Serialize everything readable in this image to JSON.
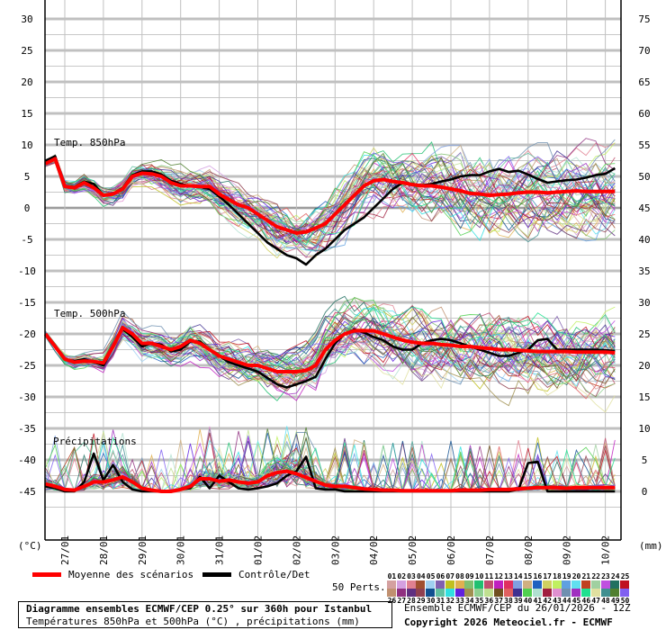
{
  "chart_data": {
    "type": "line",
    "title": "Diagramme ensembles ECMWF/CEP 0.25° sur 360h pour Istanbul",
    "subtitle": "Températures 850hPa et 500hPa (°C) , précipitations (mm)",
    "left_axis": {
      "label": "(°C)",
      "ticks": [
        30,
        25,
        20,
        15,
        10,
        5,
        0,
        -5,
        -10,
        -15,
        -20,
        -25,
        -30,
        -35,
        -40,
        -45
      ],
      "range": [
        -52,
        33
      ]
    },
    "right_axis": {
      "label": "(mm)",
      "ticks": [
        75,
        70,
        65,
        60,
        55,
        50,
        45,
        40,
        35,
        30,
        25,
        20,
        15,
        10,
        5,
        0
      ],
      "range": [
        -7,
        78
      ]
    },
    "x_categories": [
      "27/01",
      "28/01",
      "29/01",
      "30/01",
      "31/01",
      "01/02",
      "02/02",
      "03/02",
      "04/02",
      "05/02",
      "06/02",
      "07/02",
      "08/02",
      "09/02",
      "10/02"
    ],
    "grid": true,
    "panels": [
      {
        "name": "Temp. 850hPa",
        "unit": "°C",
        "x_day": [
          -0.5,
          -0.25,
          0,
          0.25,
          0.5,
          0.75,
          1,
          1.25,
          1.5,
          1.75,
          2,
          2.25,
          2.5,
          2.75,
          3,
          3.25,
          3.5,
          3.75,
          4,
          4.25,
          4.5,
          4.75,
          5,
          5.25,
          5.5,
          5.75,
          6,
          6.25,
          6.5,
          6.75,
          7,
          7.25,
          7.5,
          7.75,
          8,
          8.25,
          8.5,
          8.75,
          9,
          9.25,
          9.5,
          9.75,
          10,
          10.25,
          10.5,
          10.75,
          11,
          11.25,
          11.5,
          11.75,
          12,
          12.25,
          12.5,
          12.75,
          13,
          13.25,
          13.5,
          13.75,
          14,
          14.25
        ],
        "series": [
          {
            "name": "Moyenne des scénarios",
            "color": "#ff0000",
            "values": [
              7,
              7.8,
              3.4,
              3.2,
              4,
              3.2,
              2,
              2.2,
              3,
              5,
              5.5,
              5.4,
              5,
              4,
              3.5,
              3.5,
              3.4,
              3.4,
              2.2,
              1.3,
              0.5,
              0,
              -1,
              -2,
              -3,
              -3.5,
              -4,
              -3.8,
              -3.2,
              -2.5,
              -1,
              0.5,
              2,
              3.5,
              4.3,
              4.5,
              4.2,
              4,
              3.7,
              3.5,
              3.5,
              3.3,
              3,
              2.7,
              2.3,
              2.2,
              2,
              2.1,
              2.2,
              2.4,
              2.5,
              2.5,
              2.4,
              2.5,
              2.6,
              2.7,
              2.6,
              2.6,
              2.6,
              2.6
            ]
          },
          {
            "name": "Contrôle/Det",
            "color": "#000000",
            "values": [
              7.5,
              8.2,
              3.5,
              3.3,
              4.2,
              3.8,
              2,
              2.2,
              3.2,
              5.2,
              5.8,
              5.8,
              5.3,
              4.3,
              3.8,
              3.5,
              3.3,
              3,
              1.8,
              0.5,
              -1,
              -2.5,
              -4,
              -5.5,
              -6.5,
              -7.5,
              -8,
              -9,
              -7.5,
              -6.5,
              -5,
              -3.5,
              -2.5,
              -1.5,
              0,
              1.5,
              3,
              4,
              3.8,
              3.6,
              3.8,
              4.2,
              4.5,
              5,
              5.2,
              5.2,
              5.8,
              6.2,
              5.7,
              5.9,
              5.3,
              4.6,
              4,
              4.2,
              4.4,
              4.5,
              4.8,
              5.2,
              5.4,
              6.3
            ]
          }
        ]
      },
      {
        "name": "Temp. 500hPa",
        "unit": "°C",
        "x_day": [
          -0.5,
          -0.25,
          0,
          0.25,
          0.5,
          0.75,
          1,
          1.25,
          1.5,
          1.75,
          2,
          2.25,
          2.5,
          2.75,
          3,
          3.25,
          3.5,
          3.75,
          4,
          4.25,
          4.5,
          4.75,
          5,
          5.25,
          5.5,
          5.75,
          6,
          6.25,
          6.5,
          6.75,
          7,
          7.25,
          7.5,
          7.75,
          8,
          8.25,
          8.5,
          8.75,
          9,
          9.25,
          9.5,
          9.75,
          10,
          10.25,
          10.5,
          10.75,
          11,
          11.25,
          11.5,
          11.75,
          12,
          12.25,
          12.5,
          12.75,
          13,
          13.25,
          13.5,
          13.75,
          14,
          14.25
        ],
        "series": [
          {
            "name": "Moyenne des scénarios",
            "color": "#ff0000",
            "values": [
              -20,
              -22,
              -24,
              -24.5,
              -24.3,
              -24.4,
              -24.6,
              -22,
              -19,
              -20,
              -21.5,
              -21.5,
              -22,
              -22.5,
              -22,
              -21,
              -21.5,
              -22.5,
              -23.5,
              -24,
              -24.5,
              -25,
              -25,
              -25.5,
              -26,
              -26,
              -26,
              -25.8,
              -25,
              -22.5,
              -21,
              -20,
              -19.5,
              -19.5,
              -19.5,
              -20,
              -20.5,
              -21,
              -21.3,
              -21.5,
              -21.5,
              -21.7,
              -21.8,
              -22,
              -22,
              -22.2,
              -22.3,
              -22.5,
              -22.5,
              -22.6,
              -22.7,
              -22.8,
              -22.8,
              -22.8,
              -22.8,
              -22.9,
              -22.9,
              -22.9,
              -22.9,
              -23
            ]
          },
          {
            "name": "Contrôle/Det",
            "color": "#000000",
            "values": [
              -20,
              -22,
              -24,
              -24.3,
              -24,
              -24.5,
              -25,
              -22,
              -19.2,
              -20.5,
              -22,
              -21.5,
              -21.7,
              -22.8,
              -22.5,
              -21.2,
              -21.2,
              -22.5,
              -23.5,
              -24.5,
              -25,
              -25.5,
              -26,
              -27,
              -28,
              -28.5,
              -28,
              -27.5,
              -26.8,
              -24,
              -21.5,
              -20,
              -19.3,
              -19.8,
              -20.5,
              -21,
              -22,
              -22.5,
              -22.5,
              -21.5,
              -21,
              -20.8,
              -21,
              -21.5,
              -22,
              -22.5,
              -23,
              -23.5,
              -23.5,
              -23,
              -22.5,
              -21,
              -20.8,
              -22.5,
              -22.5,
              -22.5,
              -22.5,
              -22.5,
              -22.6,
              -22.7
            ]
          }
        ]
      },
      {
        "name": "Précipitations",
        "unit": "mm",
        "x_day": [
          -0.5,
          -0.25,
          0,
          0.25,
          0.5,
          0.75,
          1,
          1.25,
          1.5,
          1.75,
          2,
          2.25,
          2.5,
          2.75,
          3,
          3.25,
          3.5,
          3.75,
          4,
          4.25,
          4.5,
          4.75,
          5,
          5.25,
          5.5,
          5.75,
          6,
          6.25,
          6.5,
          6.75,
          7,
          7.25,
          7.5,
          7.75,
          8,
          8.25,
          8.5,
          8.75,
          9,
          9.25,
          9.5,
          9.75,
          10,
          10.25,
          10.5,
          10.75,
          11,
          11.25,
          11.5,
          11.75,
          12,
          12.25,
          12.5,
          12.75,
          13,
          13.25,
          13.5,
          13.75,
          14,
          14.25
        ],
        "series": [
          {
            "name": "Moyenne des scénarios",
            "color": "#ff0000",
            "values": [
              1.2,
              0.8,
              0.3,
              0.2,
              0.8,
              1.5,
              1.5,
              1.8,
              2.3,
              1.5,
              0.5,
              0.2,
              0,
              0,
              0.3,
              0.8,
              2,
              2,
              1.6,
              1.8,
              1.5,
              1.3,
              1.5,
              2.5,
              3,
              3.2,
              2.8,
              2.2,
              1.6,
              1,
              0.8,
              0.8,
              0.6,
              0.4,
              0.3,
              0.2,
              0.2,
              0.1,
              0.1,
              0.1,
              0.1,
              0.1,
              0.1,
              0.2,
              0.2,
              0.2,
              0.3,
              0.3,
              0.3,
              0.4,
              0.5,
              0.6,
              0.6,
              0.6,
              0.5,
              0.6,
              0.6,
              0.6,
              0.6,
              0.6
            ]
          },
          {
            "name": "Contrôle/Det",
            "color": "#000000",
            "values": [
              0.8,
              0.5,
              0,
              0,
              1.5,
              6,
              1.8,
              4.2,
              1.5,
              0.3,
              0,
              0,
              0,
              0,
              0.3,
              0.5,
              2.3,
              0.5,
              2.5,
              1.5,
              0.5,
              0.3,
              0.5,
              0.8,
              1.3,
              2.5,
              3.2,
              5.5,
              0.5,
              0.3,
              0.3,
              0,
              0,
              0,
              0,
              0,
              0,
              0,
              0,
              0,
              0,
              0,
              0,
              0,
              0,
              0,
              0,
              0,
              0,
              0.3,
              4.5,
              4.7,
              0,
              0,
              0,
              0,
              0,
              0,
              0,
              0
            ]
          }
        ]
      }
    ]
  },
  "axis_labels": {
    "left_unit": "(°C)",
    "right_unit": "(mm)"
  },
  "panel_labels": {
    "t850": "Temp. 850hPa",
    "t500": "Temp. 500hPa",
    "precip": "Précipitations"
  },
  "legend": {
    "mean_label": "Moyenne des scénarios",
    "mean_color": "#ff0000",
    "control_label": "Contrôle/Det",
    "control_color": "#000000",
    "perts_label": "50 Perts.",
    "perts_top": [
      "01",
      "02",
      "03",
      "04",
      "05",
      "06",
      "07",
      "08",
      "09",
      "10",
      "11",
      "12",
      "13",
      "14",
      "15",
      "16",
      "17",
      "18",
      "19",
      "20",
      "21",
      "22",
      "23",
      "24",
      "25"
    ],
    "perts_bottom": [
      "26",
      "27",
      "28",
      "29",
      "30",
      "31",
      "32",
      "33",
      "34",
      "35",
      "36",
      "37",
      "38",
      "39",
      "40",
      "41",
      "42",
      "43",
      "44",
      "45",
      "46",
      "47",
      "48",
      "49",
      "50"
    ],
    "colors_top": [
      "#d4a0a0",
      "#d4a0e0",
      "#e08090",
      "#a05030",
      "#a0d0f0",
      "#8060b0",
      "#c0c020",
      "#e0b050",
      "#80c070",
      "#20c070",
      "#c05070",
      "#c020c0",
      "#e03060",
      "#80a0e0",
      "#d0b080",
      "#2060c0",
      "#d0d060",
      "#c0f060",
      "#60a0e0",
      "#60e0f0",
      "#c04020",
      "#a0d0a0",
      "#c050e0",
      "#207060",
      "#c01020"
    ],
    "colors_bottom": [
      "#c09070",
      "#903080",
      "#603080",
      "#904050",
      "#105090",
      "#60c0a0",
      "#30e0e0",
      "#6020e0",
      "#a09050",
      "#90d090",
      "#c0e090",
      "#705020",
      "#e06060",
      "#403090",
      "#50d050",
      "#b0e0d0",
      "#a02040",
      "#e090d0",
      "#7090b0",
      "#a030c0",
      "#20e090",
      "#e0e0a0",
      "#409090",
      "#508030",
      "#8060f0"
    ]
  },
  "footer": {
    "title": "Diagramme ensembles ECMWF/CEP 0.25° sur 360h pour Istanbul",
    "subtitle": "Températures 850hPa et 500hPa (°C) , précipitations (mm)",
    "run_info": "Ensemble ECMWF/CEP du 26/01/2026 - 12Z",
    "copyright": "Copyright 2026 Meteociel.fr - ECMWF"
  }
}
